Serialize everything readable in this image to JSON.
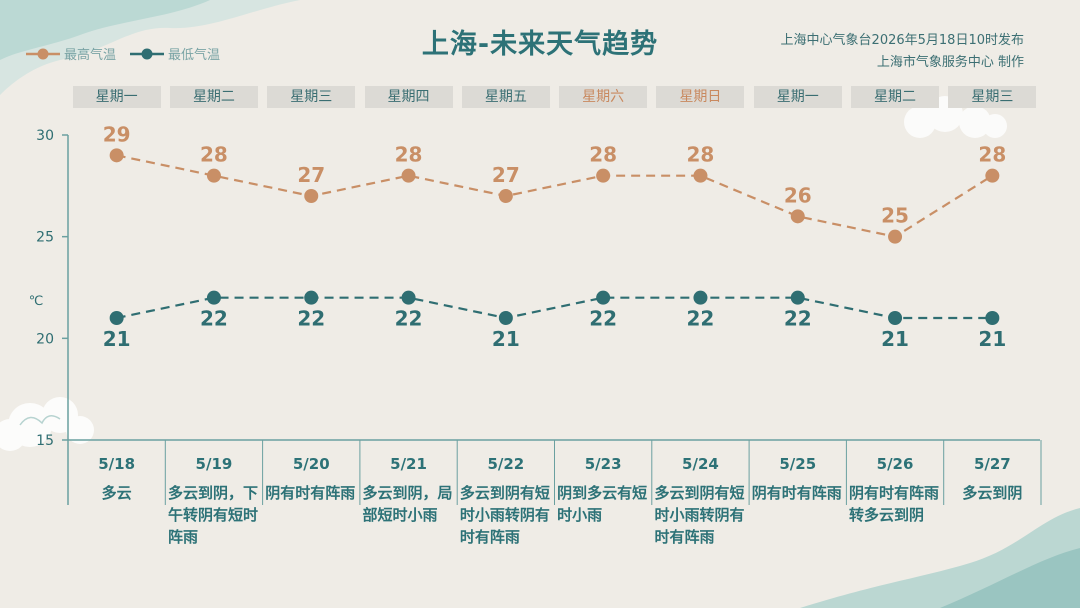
{
  "title": "上海-未来天气趋势",
  "issuer": {
    "line1": "上海中心气象台2026年5月18日10时发布",
    "line2": "上海市气象服务中心  制作"
  },
  "legend": {
    "high": "最高气温",
    "low": "最低气温"
  },
  "colors": {
    "high": "#c98f66",
    "low": "#2f6e72",
    "axis": "#6aa0a0",
    "weekend": "#c9895f"
  },
  "days": [
    {
      "weekday": "星期一",
      "weekend": false,
      "date": "5/18",
      "weather": "多云"
    },
    {
      "weekday": "星期二",
      "weekend": false,
      "date": "5/19",
      "weather": "多云到阴，下午转阴有短时阵雨"
    },
    {
      "weekday": "星期三",
      "weekend": false,
      "date": "5/20",
      "weather": "阴有时有阵雨"
    },
    {
      "weekday": "星期四",
      "weekend": false,
      "date": "5/21",
      "weather": "多云到阴，局部短时小雨"
    },
    {
      "weekday": "星期五",
      "weekend": false,
      "date": "5/22",
      "weather": "多云到阴有短时小雨转阴有时有阵雨"
    },
    {
      "weekday": "星期六",
      "weekend": true,
      "date": "5/23",
      "weather": "阴到多云有短时小雨"
    },
    {
      "weekday": "星期日",
      "weekend": true,
      "date": "5/24",
      "weather": "多云到阴有短时小雨转阴有时有阵雨"
    },
    {
      "weekday": "星期一",
      "weekend": false,
      "date": "5/25",
      "weather": "阴有时有阵雨"
    },
    {
      "weekday": "星期二",
      "weekend": false,
      "date": "5/26",
      "weather": "阴有时有阵雨转多云到阴"
    },
    {
      "weekday": "星期三",
      "weekend": false,
      "date": "5/27",
      "weather": "多云到阴"
    }
  ],
  "chart_data": {
    "type": "line",
    "categories": [
      "5/18",
      "5/19",
      "5/20",
      "5/21",
      "5/22",
      "5/23",
      "5/24",
      "5/25",
      "5/26",
      "5/27"
    ],
    "series": [
      {
        "name": "最高气温",
        "values": [
          29,
          28,
          27,
          28,
          27,
          28,
          28,
          26,
          25,
          28
        ]
      },
      {
        "name": "最低气温",
        "values": [
          21,
          22,
          22,
          22,
          21,
          22,
          22,
          22,
          21,
          21
        ]
      }
    ],
    "ylabel": "℃",
    "ylim": [
      15,
      30
    ],
    "yticks": [
      15,
      20,
      25,
      30
    ],
    "line_style": "dashed",
    "legend": "top-left",
    "grid": false
  }
}
